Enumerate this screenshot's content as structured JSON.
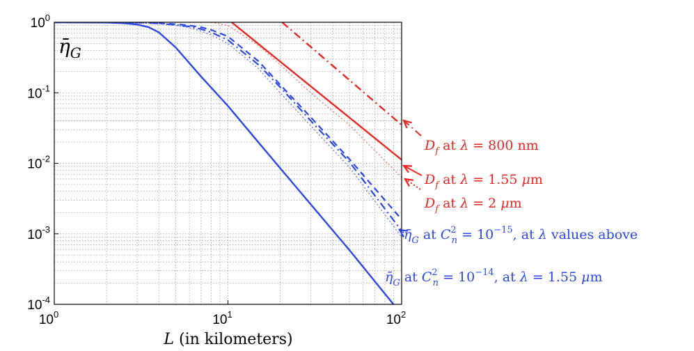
{
  "chart_data": {
    "type": "line",
    "xscale": "log",
    "yscale": "log",
    "xlim": [
      1,
      100
    ],
    "ylim": [
      0.0001,
      1
    ],
    "grid": true,
    "xlabel": "L (in kilometers)",
    "ylabel": "η̄G",
    "xticks": [
      {
        "value": 1,
        "base": "10",
        "exp": "0"
      },
      {
        "value": 10,
        "base": "10",
        "exp": "1"
      },
      {
        "value": 100,
        "base": "10",
        "exp": "2"
      }
    ],
    "yticks": [
      {
        "value": 1,
        "base": "10",
        "exp": "0"
      },
      {
        "value": 0.1,
        "base": "10",
        "exp": "-1"
      },
      {
        "value": 0.01,
        "base": "10",
        "exp": "-2"
      },
      {
        "value": 0.001,
        "base": "10",
        "exp": "-3"
      },
      {
        "value": 0.0001,
        "base": "10",
        "exp": "-4"
      }
    ],
    "colors": {
      "red": "#e8251f",
      "red_light": "#f07a70",
      "blue": "#2a46e6",
      "blue_light": "#6c7fe6"
    },
    "series": [
      {
        "color": "#e8251f",
        "style": "dashdot",
        "width": 2.4,
        "x": [
          20.5,
          100
        ],
        "y": [
          1,
          0.035
        ]
      },
      {
        "color": "#e8251f",
        "style": "solid",
        "width": 2.4,
        "x": [
          10.5,
          100
        ],
        "y": [
          1,
          0.0112
        ]
      },
      {
        "color": "#f07a70",
        "style": "dotted",
        "width": 1.4,
        "x": [
          8,
          10,
          15,
          20,
          30,
          50,
          100
        ],
        "y": [
          1,
          0.9,
          0.47,
          0.25,
          0.1,
          0.035,
          0.0063
        ]
      },
      {
        "color": "#2a46e6",
        "style": "solid",
        "width": 2.4,
        "x": [
          1,
          2,
          2.5,
          3,
          3.5,
          4,
          5,
          7,
          10,
          20,
          50,
          100
        ],
        "y": [
          1,
          0.99,
          0.97,
          0.93,
          0.85,
          0.72,
          0.44,
          0.17,
          0.065,
          0.0085,
          0.00059,
          7.2e-05
        ]
      },
      {
        "color": "#2a46e6",
        "style": "dashed",
        "width": 2.2,
        "x": [
          1,
          3,
          4,
          5,
          6,
          7,
          8,
          10,
          15,
          20,
          30,
          50,
          100
        ],
        "y": [
          1,
          0.99,
          0.97,
          0.94,
          0.9,
          0.85,
          0.78,
          0.63,
          0.28,
          0.13,
          0.045,
          0.0115,
          0.0016
        ]
      },
      {
        "color": "#2a46e6",
        "style": "dashdot",
        "width": 2.2,
        "x": [
          1,
          3,
          4,
          5,
          6,
          7,
          8,
          10,
          15,
          20,
          30,
          50,
          100
        ],
        "y": [
          1,
          0.99,
          0.96,
          0.92,
          0.87,
          0.8,
          0.72,
          0.56,
          0.25,
          0.12,
          0.04,
          0.0105,
          0.0011
        ]
      },
      {
        "color": "#6c7fe6",
        "style": "dotted",
        "width": 1.4,
        "x": [
          1,
          3,
          4,
          5,
          6,
          7,
          8,
          10,
          15,
          20,
          30,
          50,
          100
        ],
        "y": [
          1,
          0.99,
          0.95,
          0.9,
          0.84,
          0.75,
          0.66,
          0.5,
          0.22,
          0.1,
          0.034,
          0.0088,
          0.0009
        ]
      }
    ],
    "annotations": [
      {
        "text_html": "<tspan font-style='italic'>D</tspan><tspan font-style='italic' font-size='13' dy='6'>f</tspan><tspan dy='-6'> at </tspan><tspan font-style='italic'>λ</tspan><tspan> = 800 nm</tspan>",
        "text": "D_f at λ = 800 nm",
        "color": "#e8251f",
        "arrow_style": "dashdot",
        "tx": 610,
        "ty": 215,
        "ax1": 605,
        "ay1": 195,
        "ax2": 580,
        "ay2": 173
      },
      {
        "text_html": "<tspan font-style='italic'>D</tspan><tspan font-style='italic' font-size='13' dy='6'>f</tspan><tspan dy='-6'> at </tspan><tspan font-style='italic'>λ</tspan><tspan> = 1.55 </tspan><tspan font-style='italic'>μ</tspan><tspan>m</tspan>",
        "text": "D_f at λ = 1.55 μm",
        "color": "#e8251f",
        "arrow_style": "solid",
        "tx": 610,
        "ty": 264,
        "ax1": 606,
        "ay1": 252,
        "ax2": 580,
        "ay2": 238
      },
      {
        "text_html": "<tspan font-style='italic'>D</tspan><tspan font-style='italic' font-size='13' dy='6'>f</tspan><tspan dy='-6'> at </tspan><tspan font-style='italic'>λ</tspan><tspan> = 2 </tspan><tspan font-style='italic'>μ</tspan><tspan>m</tspan>",
        "text": "D_f at λ = 2 μm",
        "color": "#e8251f",
        "arrow_style": "dotted",
        "tx": 610,
        "ty": 298,
        "ax1": 604,
        "ay1": 272,
        "ax2": 582,
        "ay2": 257
      },
      {
        "text_html": "<tspan font-style='italic'>η̄</tspan><tspan font-style='italic' font-size='13' dy='6'>G</tspan><tspan dy='-6'> at </tspan><tspan font-style='italic'>C</tspan><tspan font-size='13' dy='-9'>2</tspan><tspan font-style='italic' font-size='13' dx='-7' dy='15'>n</tspan><tspan dy='-6'> = 10</tspan><tspan font-size='13' dy='-9'>−15</tspan><tspan dy='9'>, at </tspan><tspan font-style='italic'>λ</tspan><tspan> values above</tspan>",
        "text": "η̄G at Cn² = 10⁻¹⁵, at λ values above",
        "color": "#2a46e6",
        "arrow_style": "dotted",
        "tx": 580,
        "ty": 343,
        "ax1": 580,
        "ay1": 334,
        "ax2": 574,
        "ay2": 330
      },
      {
        "text_html": "<tspan font-style='italic'>η̄</tspan><tspan font-style='italic' font-size='13' dy='6'>G</tspan><tspan dy='-6'> at </tspan><tspan font-style='italic'>C</tspan><tspan font-size='13' dy='-9'>2</tspan><tspan font-style='italic' font-size='13' dx='-7' dy='15'>n</tspan><tspan dy='-6'> = 10</tspan><tspan font-size='13' dy='-9'>−14</tspan><tspan dy='9'>, at </tspan><tspan font-style='italic'>λ</tspan><tspan> = 1.55 </tspan><tspan font-style='italic'>μ</tspan><tspan>m</tspan>",
        "text": "η̄G at Cn² = 10⁻¹⁴, at λ = 1.55 μm",
        "color": "#2a46e6",
        "arrow_style": "none",
        "tx": 553,
        "ty": 404
      }
    ]
  }
}
